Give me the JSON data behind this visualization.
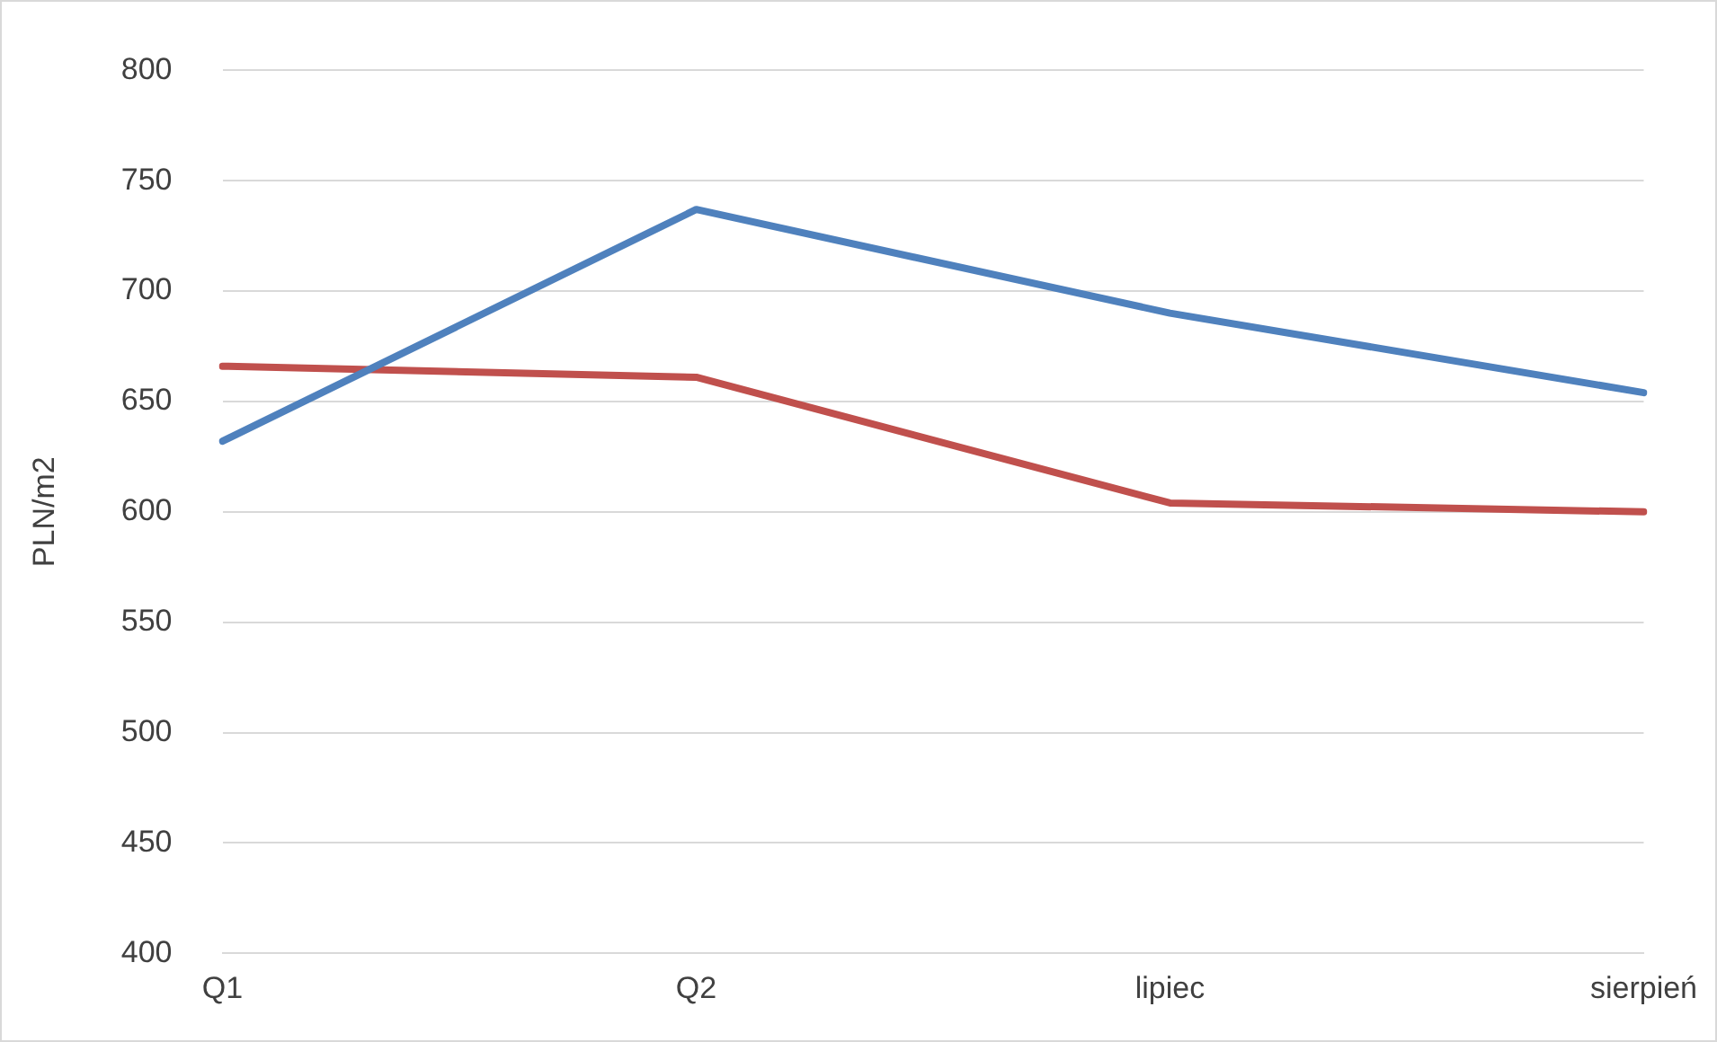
{
  "chart_data": {
    "type": "line",
    "ylabel": "PLN/m2",
    "categories": [
      "Q1",
      "Q2",
      "lipiec",
      "sierpień"
    ],
    "series": [
      {
        "color": "#4f81bd",
        "values": [
          632,
          737,
          690,
          654
        ]
      },
      {
        "color": "#c0504d",
        "values": [
          666,
          661,
          604,
          600
        ]
      }
    ],
    "ylim": [
      400,
      800
    ],
    "yticks": [
      400,
      450,
      500,
      550,
      600,
      650,
      700,
      750,
      800
    ],
    "grid": "y",
    "legend": false,
    "marker": "none",
    "line_style": "solid"
  }
}
